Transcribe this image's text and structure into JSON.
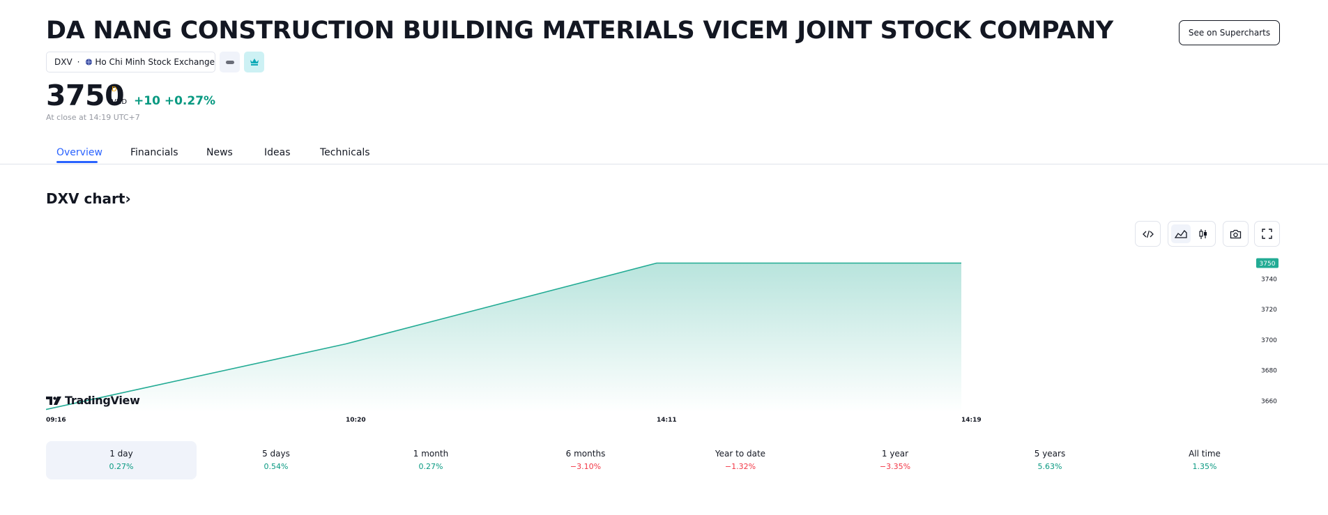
{
  "header": {
    "title": "DA NANG CONSTRUCTION BUILDING MATERIALS VICEM JOINT STOCK COMPANY",
    "supercharts_label": "See on Supercharts",
    "symbol": "DXV",
    "separator": "·",
    "exchange": "Ho Chi Minh Stock Exchange",
    "icons": {
      "exchange": "globe-icon",
      "flag_minus": "minus-icon",
      "flag_crown": "crown-icon"
    }
  },
  "quote": {
    "price": "3750",
    "flag": "D",
    "currency": "VND",
    "change": "+10",
    "change_percent": "+0.27%",
    "close_text": "At close at 14:19 UTC+7",
    "colors": {
      "positive": "#089981",
      "negative": "#f23645",
      "flag": "#f7a600"
    }
  },
  "tabs": [
    {
      "label": "Overview",
      "active": true
    },
    {
      "label": "Financials",
      "active": false
    },
    {
      "label": "News",
      "active": false
    },
    {
      "label": "Ideas",
      "active": false
    },
    {
      "label": "Technicals",
      "active": false
    }
  ],
  "chart_section": {
    "title": "DXV chart",
    "chevron": "›",
    "tools": [
      "embed-code-icon",
      "area-chart-icon",
      "candles-icon",
      "camera-icon",
      "fullscreen-icon"
    ],
    "logo_text": "TradingView"
  },
  "chart_data": {
    "type": "area",
    "x": [
      "09:16",
      "10:20",
      "14:11",
      "14:19"
    ],
    "y": [
      3654,
      3697,
      3750,
      3750
    ],
    "xticks": [
      "09:16",
      "10:20",
      "14:11",
      "14:19"
    ],
    "yticks": [
      3660,
      3680,
      3700,
      3720,
      3740
    ],
    "ylim": [
      3652,
      3758
    ],
    "last_price_label": "3750",
    "line_color": "#22ab94",
    "fill_color": "#22ab94",
    "grid": false
  },
  "periods": [
    {
      "label": "1 day",
      "value": "0.27%",
      "sign": "pos",
      "active": true
    },
    {
      "label": "5 days",
      "value": "0.54%",
      "sign": "pos",
      "active": false
    },
    {
      "label": "1 month",
      "value": "0.27%",
      "sign": "pos",
      "active": false
    },
    {
      "label": "6 months",
      "value": "−3.10%",
      "sign": "neg",
      "active": false
    },
    {
      "label": "Year to date",
      "value": "−1.32%",
      "sign": "neg",
      "active": false
    },
    {
      "label": "1 year",
      "value": "−3.35%",
      "sign": "neg",
      "active": false
    },
    {
      "label": "5 years",
      "value": "5.63%",
      "sign": "pos",
      "active": false
    },
    {
      "label": "All time",
      "value": "1.35%",
      "sign": "pos",
      "active": false
    }
  ]
}
